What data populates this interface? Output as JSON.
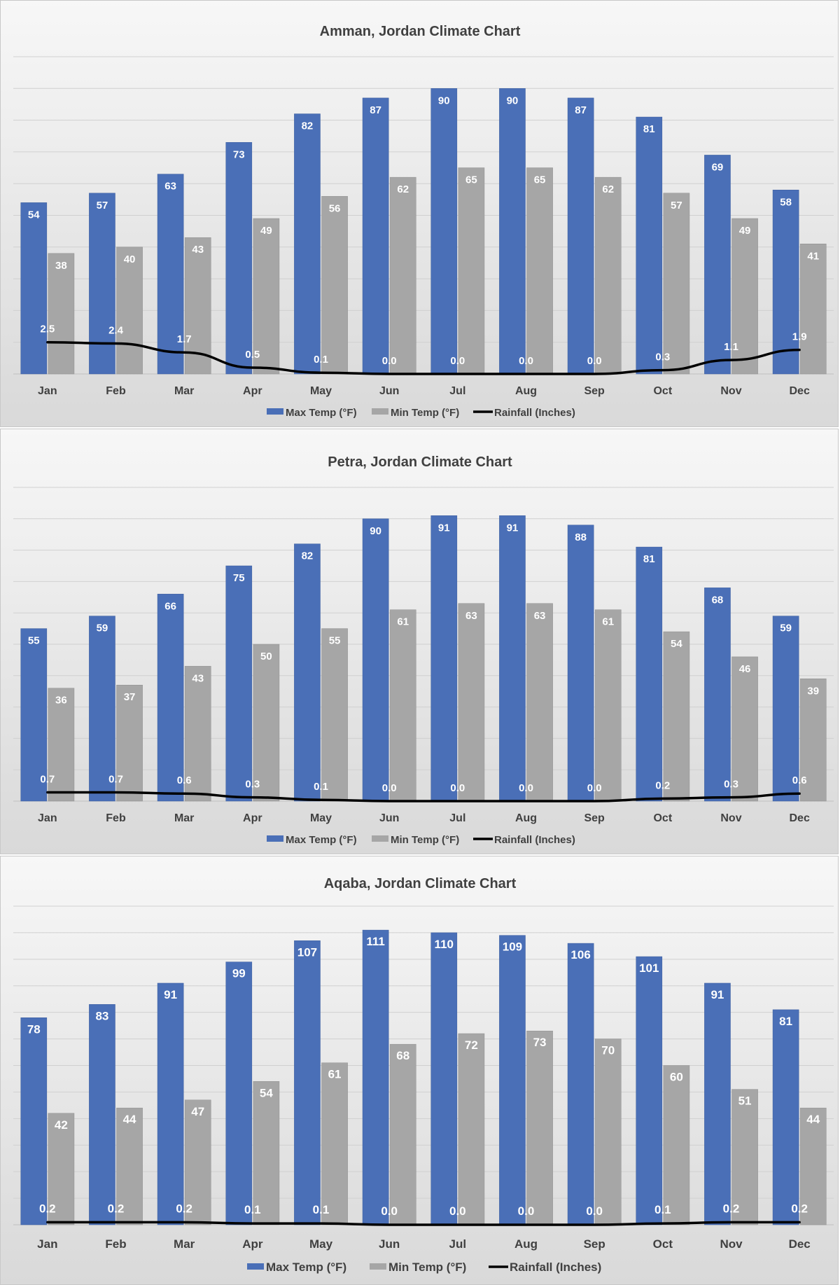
{
  "colors": {
    "max_temp": "#4a6fb7",
    "min_temp": "#a6a6a6",
    "rainfall": "#000000",
    "text": "#404040",
    "gridline": "#d0d0d0"
  },
  "chart_data": [
    {
      "type": "bar",
      "title": "Amman, Jordan Climate Chart",
      "categories": [
        "Jan",
        "Feb",
        "Mar",
        "Apr",
        "May",
        "Jun",
        "Jul",
        "Aug",
        "Sep",
        "Oct",
        "Nov",
        "Dec"
      ],
      "series": [
        {
          "name": "Max Temp (°F)",
          "type": "bar",
          "values": [
            54,
            57,
            63,
            73,
            82,
            87,
            90,
            90,
            87,
            81,
            69,
            58
          ]
        },
        {
          "name": "Min Temp (°F)",
          "type": "bar",
          "values": [
            38,
            40,
            43,
            49,
            56,
            62,
            65,
            65,
            62,
            57,
            49,
            41
          ]
        },
        {
          "name": "Rainfall (Inches)",
          "type": "line",
          "values": [
            "2.5",
            "2.4",
            "1.7",
            "0.5",
            "0.1",
            "0.0",
            "0.0",
            "0.0",
            "0.0",
            "0.3",
            "1.1",
            "1.9"
          ]
        }
      ],
      "ylim": [
        0,
        100
      ],
      "rain_ylim": [
        0,
        25
      ],
      "grid": true,
      "legend_position": "bottom",
      "xlabel": "",
      "ylabel": ""
    },
    {
      "type": "bar",
      "title": "Petra, Jordan Climate Chart",
      "categories": [
        "Jan",
        "Feb",
        "Mar",
        "Apr",
        "May",
        "Jun",
        "Jul",
        "Aug",
        "Sep",
        "Oct",
        "Nov",
        "Dec"
      ],
      "series": [
        {
          "name": "Max Temp (°F)",
          "type": "bar",
          "values": [
            55,
            59,
            66,
            75,
            82,
            90,
            91,
            91,
            88,
            81,
            68,
            59
          ]
        },
        {
          "name": "Min Temp (°F)",
          "type": "bar",
          "values": [
            36,
            37,
            43,
            50,
            55,
            61,
            63,
            63,
            61,
            54,
            46,
            39
          ]
        },
        {
          "name": "Rainfall (Inches)",
          "type": "line",
          "values": [
            "0.7",
            "0.7",
            "0.6",
            "0.3",
            "0.1",
            "0.0",
            "0.0",
            "0.0",
            "0.0",
            "0.2",
            "0.3",
            "0.6"
          ]
        }
      ],
      "ylim": [
        0,
        100
      ],
      "rain_ylim": [
        0,
        25
      ],
      "grid": true,
      "legend_position": "bottom",
      "xlabel": "",
      "ylabel": ""
    },
    {
      "type": "bar",
      "title": "Aqaba, Jordan Climate Chart",
      "categories": [
        "Jan",
        "Feb",
        "Mar",
        "Apr",
        "May",
        "Jun",
        "Jul",
        "Aug",
        "Sep",
        "Oct",
        "Nov",
        "Dec"
      ],
      "series": [
        {
          "name": "Max Temp (°F)",
          "type": "bar",
          "values": [
            78,
            83,
            91,
            99,
            107,
            111,
            110,
            109,
            106,
            101,
            91,
            81
          ]
        },
        {
          "name": "Min Temp (°F)",
          "type": "bar",
          "values": [
            42,
            44,
            47,
            54,
            61,
            68,
            72,
            73,
            70,
            60,
            51,
            44
          ]
        },
        {
          "name": "Rainfall (Inches)",
          "type": "line",
          "values": [
            "0.2",
            "0.2",
            "0.2",
            "0.1",
            "0.1",
            "0.0",
            "0.0",
            "0.0",
            "0.0",
            "0.1",
            "0.2",
            "0.2"
          ]
        }
      ],
      "ylim": [
        0,
        120
      ],
      "rain_ylim": [
        0,
        25
      ],
      "grid": true,
      "legend_position": "bottom",
      "xlabel": "",
      "ylabel": ""
    }
  ]
}
